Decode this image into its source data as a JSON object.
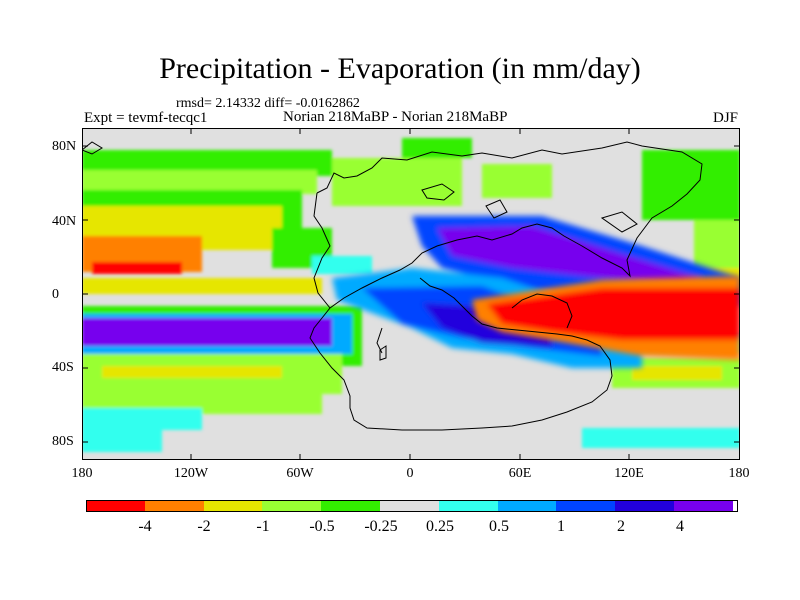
{
  "title": "Precipitation - Evaporation (in mm/day)",
  "stats": "rmsd= 2.14332 diff= -0.0162862",
  "left_label": "Expt = tevmf-tecqc1",
  "center_label": "Norian 218MaBP - Norian 218MaBP",
  "right_label": "DJF",
  "lat_ticks": [
    "80N",
    "40N",
    "0",
    "40S",
    "80S"
  ],
  "lon_ticks": [
    "180",
    "120W",
    "60W",
    "0",
    "60E",
    "120E",
    "180"
  ],
  "colorbar": {
    "colors": [
      "#ff0000",
      "#ff8000",
      "#e6e600",
      "#99ff33",
      "#33ee00",
      "#e0e0e0",
      "#33ffee",
      "#00aaff",
      "#0044ff",
      "#2200dd",
      "#7700ee"
    ],
    "labels": [
      "-4",
      "-2",
      "-1",
      "-0.5",
      "-0.25",
      "0.25",
      "0.5",
      "1",
      "2",
      "4"
    ]
  },
  "chart_data": {
    "type": "heatmap",
    "title": "Precipitation - Evaporation (in mm/day)",
    "x_ticks": [
      "180",
      "120W",
      "60W",
      "0",
      "60E",
      "120E",
      "180"
    ],
    "y_ticks": [
      "80N",
      "40N",
      "0",
      "40S",
      "80S"
    ],
    "color_levels": [
      -4,
      -2,
      -1,
      -0.5,
      -0.25,
      0.25,
      0.5,
      1,
      2,
      4
    ],
    "rmsd": 2.14332,
    "diff": -0.0162862
  }
}
